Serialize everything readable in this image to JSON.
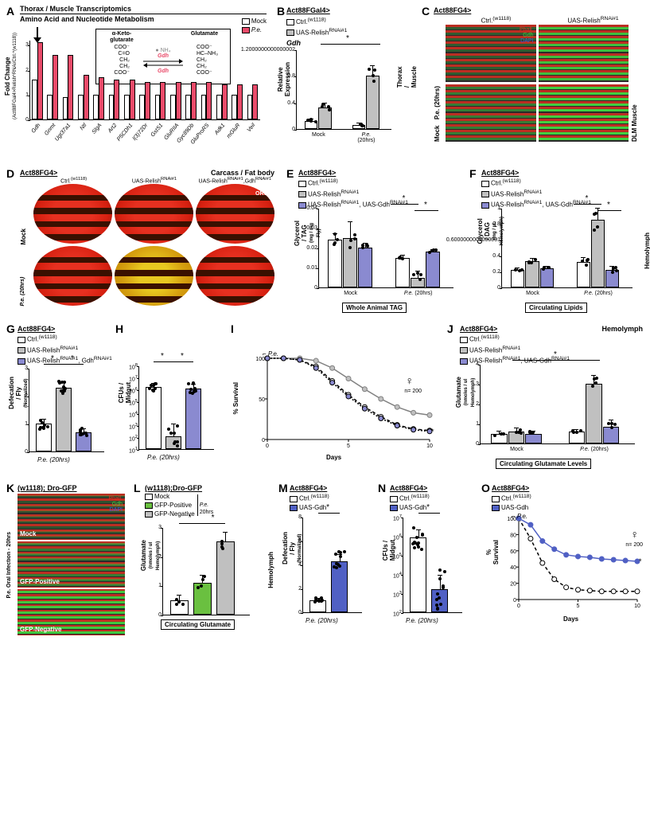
{
  "colors": {
    "mock": "#ffffff",
    "pe": "#e94b6a",
    "ctrl": "#ffffff",
    "relish": "#c0c0c0",
    "relish_gdh": "#8a8ad0",
    "gfp_pos": "#6ac040",
    "gfp_neg": "#c0c0c0",
    "uas_gdh": "#5060c4",
    "phall": "#e03020",
    "gdh_green": "#40d040",
    "dapi": "#4060e0",
    "grid": "#cccccc",
    "sig_star": "*"
  },
  "A": {
    "label": "A",
    "header1": "Thorax / Muscle Transcriptomics",
    "header2": "Amino Acid and Nucleotide Metabolism",
    "ylabel": "Fold Change",
    "ysub": "(Act88FGal4>Relish^RNAi/Ctrl.^(w1118))",
    "legend": [
      "Mock",
      "P.e."
    ],
    "ylim": [
      0,
      3.2
    ],
    "ytick_step": 1,
    "genes": [
      "Gdh",
      "Gnmt",
      "Ugt37a1",
      "Ntl",
      "SlgA",
      "Art2",
      "P5CDh1",
      "l(3)72Dr",
      "GstS1",
      "GluRIIA",
      "Gyc89Db",
      "GluProRS",
      "Adk1",
      "mGluR",
      "Veil"
    ],
    "mock_vals": [
      1.6,
      1.0,
      0.9,
      1.0,
      1.0,
      1.0,
      1.0,
      1.0,
      1.0,
      1.0,
      1.0,
      1.0,
      1.0,
      1.0,
      1.0
    ],
    "pe_vals": [
      3.1,
      2.6,
      2.6,
      1.8,
      1.7,
      1.6,
      1.6,
      1.5,
      1.5,
      1.5,
      1.5,
      1.5,
      1.4,
      1.4,
      1.4
    ],
    "inset": {
      "left_title": "α-Keto-\nglutarate",
      "right_title": "Glutamate",
      "left_lines": [
        "COO⁻",
        "C=O",
        "CH₂",
        "CH₂",
        "COO⁻"
      ],
      "right_lines": [
        "COO⁻",
        "HC–NH₃",
        "CH₂",
        "CH₂",
        "COO⁻"
      ],
      "nh4": "NH₄",
      "enzyme": "Gdh"
    }
  },
  "B": {
    "label": "B",
    "title": "Act88FGal4>",
    "legend": [
      "Ctrl.(w1118)",
      "UAS-Relish^RNAi#1"
    ],
    "gene_it": "Gdh",
    "ylabel": "Relative Expression",
    "side": "Thorax / Muscle",
    "ylim": [
      0,
      1.2
    ],
    "ytick_step": 0.4,
    "groups": [
      "Mock",
      "P.e. (20hrs)"
    ],
    "vals": [
      [
        0.12,
        0.33
      ],
      [
        0.06,
        0.8
      ]
    ],
    "err": [
      [
        0.03,
        0.06
      ],
      [
        0.02,
        0.15
      ]
    ],
    "sig": [
      {
        "from": 1,
        "to": 3,
        "label": "*"
      }
    ]
  },
  "C": {
    "label": "C",
    "title": "Act88FG4>",
    "cols": [
      "Ctrl.(w1118)",
      "UAS-Relish^RNAi#1"
    ],
    "rows": [
      "Mock",
      "P.e. (20hrs)"
    ],
    "side": "DLM Muscle",
    "channels": [
      "Phall.",
      "Gdh",
      "DAPI"
    ],
    "channel_colors": [
      "#e03020",
      "#40d040",
      "#4060e0"
    ]
  },
  "D": {
    "label": "D",
    "title": "Act88FG4>",
    "right_title": "Carcass / Fat body",
    "cols": [
      "Ctrl.(w1118)",
      "UAS-Relish^RNAi#1",
      "UAS-Relish^RNAi#1,Gdh^RNAi#1"
    ],
    "rows": [
      "Mock",
      "P.e. (20hrs)"
    ],
    "stain": "ORO",
    "yellow_cells": [
      [
        1,
        1
      ]
    ]
  },
  "E": {
    "label": "E",
    "title": "Act88FG4>",
    "legend": [
      "Ctrl.(w1118)",
      "UAS-Relish^RNAi#1",
      "UAS-Relish^RNAi#1, UAS-Gdh^RNAi#1"
    ],
    "ylabel": "Glycerol / TAG",
    "ysub": "(mg / mg Fly)",
    "ylim": [
      0,
      0.04
    ],
    "ytick_step": 0.01,
    "groups": [
      "Mock",
      "P.e. (20hrs)"
    ],
    "vals": [
      [
        0.024,
        0.025,
        0.02
      ],
      [
        0.015,
        0.005,
        0.018
      ]
    ],
    "err": [
      [
        0.003,
        0.008,
        0.002
      ],
      [
        0.001,
        0.003,
        0.001
      ]
    ],
    "box": "Whole Animal TAG",
    "sig": [
      {
        "g": 1,
        "pair": [
          0,
          1
        ]
      },
      {
        "g": 1,
        "pair": [
          1,
          2
        ]
      }
    ]
  },
  "F": {
    "label": "F",
    "title": "Act88FG4>",
    "legend": [
      "Ctrl.(w1118)",
      "UAS-Relish^RNAi#1",
      "UAS-Relish^RNAi#1, UAS-Gdh^RNAi#1"
    ],
    "ylabel": "Glycerol / DAG",
    "ysub": "(mg / µL Hemolymph)",
    "side": "Hemolymph",
    "ylim": [
      0,
      1.0
    ],
    "ytick_step": 0.2,
    "groups": [
      "Mock",
      "P.e. (20hrs)"
    ],
    "vals": [
      [
        0.22,
        0.33,
        0.24
      ],
      [
        0.32,
        0.85,
        0.22
      ]
    ],
    "err": [
      [
        0.02,
        0.03,
        0.02
      ],
      [
        0.05,
        0.14,
        0.04
      ]
    ],
    "box": "Circulating Lipids",
    "sig": [
      {
        "g": 1,
        "pair": [
          0,
          1
        ]
      },
      {
        "g": 1,
        "pair": [
          1,
          2
        ]
      }
    ]
  },
  "G": {
    "label": "G",
    "title": "Act88FG4>",
    "legend": [
      "Ctrl.(w1118)",
      "UAS-Relish^RNAi#1",
      "UAS-Relish^RNAi#1, Gdh^RNAi#1"
    ],
    "ylabel": "Defecation / Fly",
    "ysub": "(Normalized)",
    "ylim": [
      0,
      3
    ],
    "ytick_step": 1,
    "group": "P.e. (20hrs)",
    "vals": [
      1.0,
      2.3,
      0.7
    ],
    "err": [
      0.15,
      0.2,
      0.1
    ],
    "n_dots": [
      10,
      10,
      10
    ],
    "sig": [
      [
        0,
        1
      ],
      [
        1,
        2
      ]
    ]
  },
  "H": {
    "label": "H",
    "ylabel": "CFUs / Midgut",
    "ylim_log": [
      1,
      8
    ],
    "group": "P.e. (20hrs)",
    "vals_log": [
      6.2,
      2.1,
      6.1
    ],
    "err_log": [
      0.3,
      1.0,
      0.3
    ],
    "n_dots": [
      10,
      8,
      10
    ],
    "sig": [
      [
        0,
        1
      ],
      [
        1,
        2
      ]
    ]
  },
  "I": {
    "label": "I",
    "ylabel": "% Survival",
    "xlabel": "Days",
    "xlim": [
      0,
      10
    ],
    "xtick_step": 5,
    "ylim": [
      0,
      100
    ],
    "ytick_step": 50,
    "pe_label": "P.e.",
    "n": "n= 200",
    "sex": "♀",
    "series": [
      {
        "name": "Ctrl.(w1118)",
        "color": "#ffffff",
        "stroke": "#000000",
        "dash": "4,3",
        "pts": [
          [
            0,
            100
          ],
          [
            1,
            100
          ],
          [
            2,
            98
          ],
          [
            3,
            90
          ],
          [
            4,
            72
          ],
          [
            5,
            55
          ],
          [
            6,
            40
          ],
          [
            7,
            28
          ],
          [
            8,
            18
          ],
          [
            9,
            13
          ],
          [
            10,
            11
          ]
        ]
      },
      {
        "name": "UAS-Relish^RNAi#1",
        "color": "#c0c0c0",
        "stroke": "#808080",
        "dash": "",
        "pts": [
          [
            0,
            100
          ],
          [
            1,
            100
          ],
          [
            2,
            100
          ],
          [
            3,
            97
          ],
          [
            4,
            88
          ],
          [
            5,
            75
          ],
          [
            6,
            62
          ],
          [
            7,
            50
          ],
          [
            8,
            40
          ],
          [
            9,
            33
          ],
          [
            10,
            30
          ]
        ]
      },
      {
        "name": "UAS-Relish^RNAi#1, Gdh^RNAi#1",
        "color": "#8a8ad0",
        "stroke": "#000000",
        "dash": "2,2",
        "pts": [
          [
            0,
            100
          ],
          [
            1,
            100
          ],
          [
            2,
            98
          ],
          [
            3,
            88
          ],
          [
            4,
            70
          ],
          [
            5,
            53
          ],
          [
            6,
            38
          ],
          [
            7,
            26
          ],
          [
            8,
            17
          ],
          [
            9,
            12
          ],
          [
            10,
            10
          ]
        ]
      }
    ]
  },
  "J": {
    "label": "J",
    "title": "Act88FG4>",
    "right_title": "Hemolymph",
    "legend": [
      "Ctrl.(w1118)",
      "UAS-Relish^RNAi#1",
      "UAS-Relish^RNAi#1, UAS-Gdh^RNAi#1"
    ],
    "ylabel": "Glutamate",
    "ysub": "(nmoles / ul Hemolymph)",
    "ylim": [
      0,
      4
    ],
    "ytick_step": 1,
    "groups": [
      "Mock",
      "P.e. (20hrs)"
    ],
    "vals": [
      [
        0.5,
        0.6,
        0.5
      ],
      [
        0.6,
        3.0,
        0.85
      ]
    ],
    "err": [
      [
        0.1,
        0.15,
        0.1
      ],
      [
        0.1,
        0.4,
        0.3
      ]
    ],
    "box": "Circulating Glutamate Levels",
    "sig": [
      {
        "from": "0-1",
        "to": "1-1",
        "label": "*"
      }
    ]
  },
  "K": {
    "label": "K",
    "title": "(w1118); Dro-GFP",
    "rows": [
      "Mock",
      "GFP-Positive",
      "GFP-Negative"
    ],
    "side": "P.e. Oral Infection - 20hrs",
    "channels": [
      "Phall.",
      "Gdh",
      "DAPI"
    ],
    "channel_colors": [
      "#e03020",
      "#40d040",
      "#4060e0"
    ]
  },
  "L": {
    "label": "L",
    "title": "(w1118);Dro-GFP",
    "legend": [
      {
        "label": "Mock",
        "color": "#ffffff"
      },
      {
        "label": "GFP-Positive",
        "color": "#6ac040",
        "bracket": "P.e."
      },
      {
        "label": "GFP-Negative",
        "color": "#c0c0c0",
        "bracket": "20hrs"
      }
    ],
    "ylabel": "Glutamate",
    "ysub": "(nmoles / ul Hemolymph)",
    "side": "Hemolymph",
    "ylim": [
      0,
      3
    ],
    "ytick_step": 1,
    "vals": [
      0.5,
      1.1,
      2.5
    ],
    "err": [
      0.15,
      0.25,
      0.3
    ],
    "box": "Circulating Glutamate",
    "sig": [
      [
        0,
        1
      ],
      [
        1,
        2
      ]
    ]
  },
  "M": {
    "label": "M",
    "title": "Act88FG4>",
    "legend": [
      "Ctrl.(w1118)",
      "UAS-Gdh"
    ],
    "ylabel": "Defecation / Fly",
    "ysub": "(Normalized)",
    "ylim": [
      0,
      8
    ],
    "ytick_step": 2,
    "group": "P.e. (20hrs)",
    "vals": [
      1.0,
      4.3
    ],
    "err": [
      0.15,
      0.5
    ],
    "n_dots": [
      10,
      10
    ],
    "sig": [
      [
        0,
        1
      ]
    ]
  },
  "N": {
    "label": "N",
    "title": "Act88FG4>",
    "legend": [
      "Ctrl.(w1118)",
      "UAS-Gdh"
    ],
    "ylabel": "CFUs / Midgut",
    "ylim_log": [
      2,
      7
    ],
    "group": "P.e. (20hrs)",
    "vals_log": [
      5.9,
      3.2
    ],
    "err_log": [
      0.4,
      0.7
    ],
    "n_dots": [
      12,
      12
    ],
    "sig": [
      [
        0,
        1
      ]
    ]
  },
  "O": {
    "label": "O",
    "title": "Act88FG4>",
    "legend": [
      "Ctrl.(w1118)",
      "UAS-Gdh"
    ],
    "ylabel": "% Survival",
    "xlabel": "Days",
    "xlim": [
      0,
      10
    ],
    "xtick_step": 5,
    "ylim": [
      0,
      100
    ],
    "ytick_step": 20,
    "pe_label": "P.e.",
    "n": "n= 200",
    "sex": "♀",
    "series": [
      {
        "name": "Ctrl.",
        "color": "#ffffff",
        "stroke": "#000000",
        "dash": "4,3",
        "pts": [
          [
            0,
            100
          ],
          [
            1,
            75
          ],
          [
            2,
            45
          ],
          [
            3,
            25
          ],
          [
            4,
            15
          ],
          [
            5,
            12
          ],
          [
            6,
            11
          ],
          [
            7,
            10
          ],
          [
            8,
            10
          ],
          [
            9,
            10
          ],
          [
            10,
            10
          ]
        ]
      },
      {
        "name": "UAS-Gdh",
        "color": "#5060c4",
        "stroke": "#5060c4",
        "dash": "",
        "pts": [
          [
            0,
            100
          ],
          [
            1,
            92
          ],
          [
            2,
            72
          ],
          [
            3,
            62
          ],
          [
            4,
            55
          ],
          [
            5,
            53
          ],
          [
            6,
            52
          ],
          [
            7,
            50
          ],
          [
            8,
            49
          ],
          [
            9,
            48
          ],
          [
            10,
            47
          ]
        ]
      }
    ]
  }
}
